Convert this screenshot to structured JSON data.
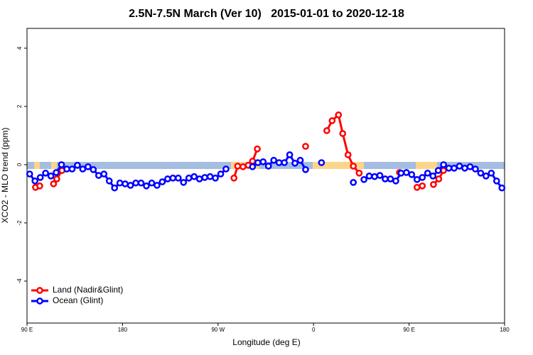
{
  "chart_data": {
    "type": "line",
    "title": "2.5N-7.5N March (Ver 10)   2015-01-01 to 2020-12-18",
    "x_label": "Longitude (deg E)",
    "y_label": "XCO2 - MLO trend (ppm)",
    "xlim": [
      90,
      540
    ],
    "ylim": [
      -5.44,
      4.68
    ],
    "xticks": [
      {
        "value": 90,
        "label": "90 E"
      },
      180,
      {
        "value": 270,
        "label": "90 W"
      },
      {
        "value": 360,
        "label": "0"
      },
      {
        "value": 450,
        "label": "90 E"
      },
      {
        "value": 540,
        "label": "180"
      }
    ],
    "yticks": [
      -4,
      -2,
      0,
      2,
      4
    ],
    "legend": "bottom-left",
    "series": [
      {
        "name": "Land (Nadir&Glint)",
        "color": "#ff0000",
        "x": [
          98,
          102,
          null,
          115,
          118,
          123,
          null,
          285,
          288.5,
          293.5,
          298.5,
          302.5,
          307,
          null,
          352.5,
          null,
          372.5,
          377.5,
          383.5,
          387.5,
          392.5,
          397.5,
          403,
          null,
          441,
          null,
          457.5,
          462.5,
          null,
          473,
          478,
          482.5
        ],
        "values": [
          -0.78,
          -0.73,
          null,
          -0.66,
          -0.49,
          -0.2,
          null,
          -0.46,
          -0.05,
          -0.07,
          -0.02,
          0.12,
          0.54,
          null,
          0.63,
          null,
          1.17,
          1.51,
          1.71,
          1.07,
          0.34,
          -0.05,
          -0.29,
          null,
          -0.27,
          null,
          -0.78,
          -0.73,
          null,
          -0.68,
          -0.49,
          -0.2
        ]
      },
      {
        "name": "Ocean (Glint)",
        "color": "#0000ff",
        "x": [
          92.5,
          97.5,
          102.5,
          107.5,
          112.5,
          117.5,
          122.5,
          127.5,
          132.5,
          137.5,
          142.5,
          147.5,
          152.5,
          157.5,
          162.5,
          167.5,
          172.5,
          177.5,
          182.5,
          187.5,
          192.5,
          197.5,
          202.5,
          207.5,
          212.5,
          217.5,
          222.5,
          227.5,
          232.5,
          237.5,
          242.5,
          247.5,
          252.5,
          257.5,
          262.5,
          267.5,
          272.5,
          277.5,
          282.5,
          287.5,
          292.5,
          297.5,
          302.5,
          307.5,
          312.5,
          317.5,
          322.5,
          327.5,
          332.5,
          337.5,
          342.5,
          347.5,
          352.5,
          357.5,
          362.5,
          367.5,
          372.5,
          377.5,
          382.5,
          387.5,
          392.5,
          397.5,
          402.5,
          407.5,
          412.5,
          417.5,
          422.5,
          427.5,
          432.5,
          437.5,
          442.5,
          447.5,
          452.5,
          457.5,
          462.5,
          467.5,
          472.5,
          477.5,
          482.5,
          487.5,
          492.5,
          497.5,
          502.5,
          507.5,
          512.5,
          517.5,
          522.5,
          527.5,
          532.5,
          537.5
        ],
        "values": [
          -0.32,
          -0.56,
          -0.44,
          -0.29,
          -0.39,
          -0.27,
          0.0,
          -0.15,
          -0.15,
          -0.02,
          -0.15,
          -0.07,
          -0.17,
          -0.37,
          -0.32,
          -0.56,
          -0.8,
          -0.63,
          -0.66,
          -0.71,
          -0.63,
          -0.63,
          -0.73,
          -0.63,
          -0.71,
          -0.59,
          -0.49,
          -0.46,
          -0.46,
          -0.61,
          -0.46,
          -0.41,
          -0.49,
          -0.44,
          -0.41,
          -0.46,
          -0.32,
          -0.15,
          null,
          null,
          null,
          null,
          -0.07,
          0.07,
          0.1,
          -0.05,
          0.15,
          0.07,
          0.07,
          0.34,
          0.05,
          0.15,
          -0.17,
          null,
          null,
          0.07,
          null,
          null,
          null,
          null,
          null,
          -0.61,
          null,
          -0.51,
          -0.39,
          -0.41,
          -0.37,
          -0.49,
          -0.49,
          -0.56,
          -0.29,
          -0.27,
          -0.34,
          -0.51,
          -0.44,
          -0.29,
          -0.39,
          -0.2,
          0.0,
          -0.12,
          -0.12,
          -0.05,
          -0.12,
          -0.07,
          -0.15,
          -0.29,
          -0.39,
          -0.29,
          -0.56,
          -0.8
        ]
      }
    ]
  }
}
